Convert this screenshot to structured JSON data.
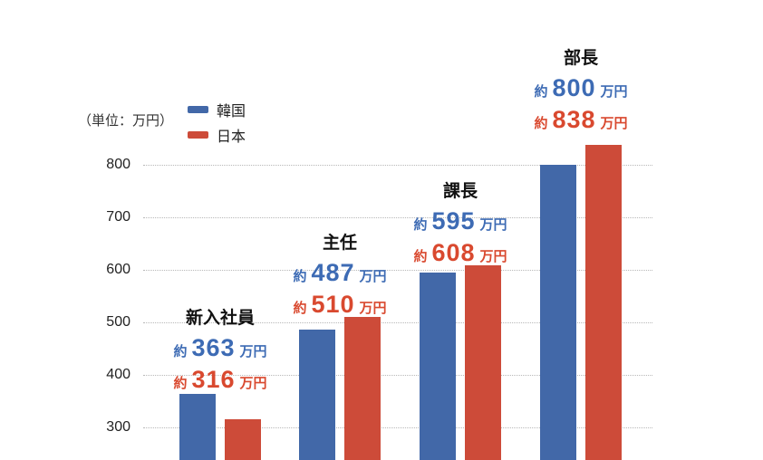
{
  "unit_label": "（単位：万円）",
  "colors": {
    "korea_bar": "#4268a8",
    "japan_bar": "#cd4b39",
    "korea_text": "#3d6bb4",
    "japan_text": "#d9492f",
    "gridline": "#b8b8b8"
  },
  "chart_data": {
    "type": "bar",
    "categories": [
      "新入社員",
      "主任",
      "課長",
      "部長"
    ],
    "series": [
      {
        "name": "韓国",
        "color": "#4268a8",
        "text_color": "#3d6bb4",
        "values": [
          363,
          487,
          595,
          800
        ]
      },
      {
        "name": "日本",
        "color": "#cd4b39",
        "text_color": "#d9492f",
        "values": [
          316,
          510,
          608,
          838
        ]
      }
    ],
    "value_prefix": "約",
    "value_suffix": "万円",
    "ylabel": "万円",
    "yticks": [
      300,
      400,
      500,
      600,
      700,
      800
    ],
    "ylim_visible": [
      300,
      800
    ],
    "grid": "horizontal-dotted",
    "legend_position": "top-left",
    "bars_clipped_at_bottom": true
  }
}
